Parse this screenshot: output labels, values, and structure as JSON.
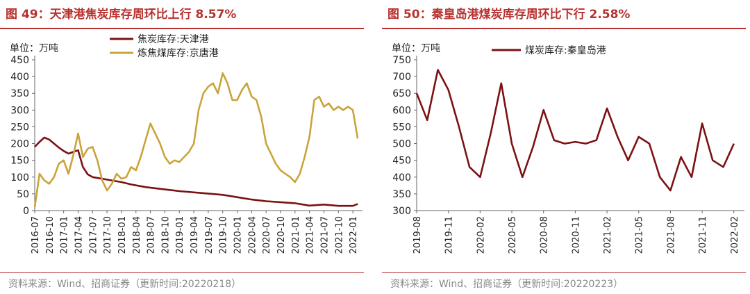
{
  "panels": {
    "left": {
      "title": "图 49：天津港焦炭库存周环比上行 8.57%",
      "source": "资料来源：Wind、招商证券（更新时间:20220218）"
    },
    "right": {
      "title": "图 50：秦皇岛港煤炭库存周环比下行 2.58%",
      "source": "资料来源：Wind、招商证券（更新时间:20220223）"
    }
  },
  "chart_data": [
    {
      "type": "line",
      "unit_label": "单位：万吨",
      "ylim": [
        0,
        450
      ],
      "yticks": [
        0,
        50,
        100,
        150,
        200,
        250,
        300,
        350,
        400,
        450
      ],
      "xlim": [
        "2016-07",
        "2022-03"
      ],
      "xticks": [
        "2016-07",
        "2016-10",
        "2017-01",
        "2017-04",
        "2017-07",
        "2017-10",
        "2018-01",
        "2018-04",
        "2018-07",
        "2018-10",
        "2019-01",
        "2019-04",
        "2019-07",
        "2019-10",
        "2020-01",
        "2020-04",
        "2020-07",
        "2020-10",
        "2021-01",
        "2021-04",
        "2021-07",
        "2021-10",
        "2022-01"
      ],
      "legend": "top",
      "colors": [
        "#7b1113",
        "#c9a43a"
      ],
      "series": [
        {
          "name": "焦炭库存:天津港",
          "color": "#7b1113",
          "points": [
            [
              "2016-07",
              190
            ],
            [
              "2016-08",
              205
            ],
            [
              "2016-09",
              218
            ],
            [
              "2016-10",
              212
            ],
            [
              "2016-11",
              200
            ],
            [
              "2016-12",
              188
            ],
            [
              "2017-01",
              178
            ],
            [
              "2017-02",
              170
            ],
            [
              "2017-03",
              175
            ],
            [
              "2017-04",
              180
            ],
            [
              "2017-05",
              130
            ],
            [
              "2017-06",
              108
            ],
            [
              "2017-07",
              100
            ],
            [
              "2017-09",
              95
            ],
            [
              "2017-11",
              90
            ],
            [
              "2018-01",
              85
            ],
            [
              "2018-03",
              78
            ],
            [
              "2018-06",
              70
            ],
            [
              "2018-09",
              65
            ],
            [
              "2019-01",
              58
            ],
            [
              "2019-06",
              52
            ],
            [
              "2019-10",
              47
            ],
            [
              "2020-01",
              40
            ],
            [
              "2020-04",
              33
            ],
            [
              "2020-07",
              28
            ],
            [
              "2020-10",
              25
            ],
            [
              "2021-01",
              22
            ],
            [
              "2021-04",
              15
            ],
            [
              "2021-07",
              18
            ],
            [
              "2021-10",
              14
            ],
            [
              "2022-01",
              14
            ],
            [
              "2022-02",
              20
            ]
          ]
        },
        {
          "name": "炼焦煤库存:京唐港",
          "color": "#c9a43a",
          "points": [
            [
              "2016-07",
              10
            ],
            [
              "2016-08",
              110
            ],
            [
              "2016-09",
              90
            ],
            [
              "2016-10",
              80
            ],
            [
              "2016-11",
              100
            ],
            [
              "2016-12",
              140
            ],
            [
              "2017-01",
              150
            ],
            [
              "2017-02",
              110
            ],
            [
              "2017-03",
              165
            ],
            [
              "2017-04",
              230
            ],
            [
              "2017-05",
              160
            ],
            [
              "2017-06",
              185
            ],
            [
              "2017-07",
              190
            ],
            [
              "2017-08",
              150
            ],
            [
              "2017-09",
              90
            ],
            [
              "2017-10",
              60
            ],
            [
              "2017-11",
              80
            ],
            [
              "2017-12",
              110
            ],
            [
              "2018-01",
              95
            ],
            [
              "2018-02",
              100
            ],
            [
              "2018-03",
              130
            ],
            [
              "2018-04",
              120
            ],
            [
              "2018-05",
              160
            ],
            [
              "2018-06",
              210
            ],
            [
              "2018-07",
              260
            ],
            [
              "2018-08",
              230
            ],
            [
              "2018-09",
              200
            ],
            [
              "2018-10",
              160
            ],
            [
              "2018-11",
              140
            ],
            [
              "2018-12",
              150
            ],
            [
              "2019-01",
              145
            ],
            [
              "2019-02",
              160
            ],
            [
              "2019-03",
              175
            ],
            [
              "2019-04",
              200
            ],
            [
              "2019-05",
              300
            ],
            [
              "2019-06",
              350
            ],
            [
              "2019-07",
              370
            ],
            [
              "2019-08",
              380
            ],
            [
              "2019-09",
              350
            ],
            [
              "2019-10",
              410
            ],
            [
              "2019-11",
              380
            ],
            [
              "2019-12",
              330
            ],
            [
              "2020-01",
              330
            ],
            [
              "2020-02",
              360
            ],
            [
              "2020-03",
              380
            ],
            [
              "2020-04",
              340
            ],
            [
              "2020-05",
              330
            ],
            [
              "2020-06",
              280
            ],
            [
              "2020-07",
              200
            ],
            [
              "2020-08",
              170
            ],
            [
              "2020-09",
              140
            ],
            [
              "2020-10",
              120
            ],
            [
              "2020-11",
              110
            ],
            [
              "2020-12",
              100
            ],
            [
              "2021-01",
              85
            ],
            [
              "2021-02",
              110
            ],
            [
              "2021-03",
              160
            ],
            [
              "2021-04",
              220
            ],
            [
              "2021-05",
              330
            ],
            [
              "2021-06",
              340
            ],
            [
              "2021-07",
              310
            ],
            [
              "2021-08",
              320
            ],
            [
              "2021-09",
              300
            ],
            [
              "2021-10",
              310
            ],
            [
              "2021-11",
              300
            ],
            [
              "2021-12",
              310
            ],
            [
              "2022-01",
              300
            ],
            [
              "2022-02",
              215
            ]
          ]
        }
      ]
    },
    {
      "type": "line",
      "unit_label": "单位：万吨",
      "ylim": [
        300,
        750
      ],
      "yticks": [
        300,
        350,
        400,
        450,
        500,
        550,
        600,
        650,
        700,
        750
      ],
      "xlim": [
        "2019-08",
        "2022-03"
      ],
      "xticks": [
        "2019-08",
        "2019-11",
        "2020-02",
        "2020-05",
        "2020-08",
        "2020-11",
        "2021-02",
        "2021-05",
        "2021-08",
        "2021-11",
        "2022-02"
      ],
      "legend": "top",
      "colors": [
        "#7b1113"
      ],
      "series": [
        {
          "name": "煤炭库存:秦皇岛港",
          "color": "#7b1113",
          "points": [
            [
              "2019-08",
              650
            ],
            [
              "2019-09",
              570
            ],
            [
              "2019-10",
              720
            ],
            [
              "2019-11",
              660
            ],
            [
              "2019-12",
              550
            ],
            [
              "2020-01",
              430
            ],
            [
              "2020-02",
              400
            ],
            [
              "2020-03",
              530
            ],
            [
              "2020-04",
              680
            ],
            [
              "2020-05",
              500
            ],
            [
              "2020-06",
              400
            ],
            [
              "2020-07",
              490
            ],
            [
              "2020-08",
              600
            ],
            [
              "2020-09",
              510
            ],
            [
              "2020-10",
              500
            ],
            [
              "2020-11",
              505
            ],
            [
              "2020-12",
              500
            ],
            [
              "2021-01",
              510
            ],
            [
              "2021-02",
              605
            ],
            [
              "2021-03",
              520
            ],
            [
              "2021-04",
              450
            ],
            [
              "2021-05",
              520
            ],
            [
              "2021-06",
              500
            ],
            [
              "2021-07",
              400
            ],
            [
              "2021-08",
              360
            ],
            [
              "2021-09",
              460
            ],
            [
              "2021-10",
              400
            ],
            [
              "2021-11",
              560
            ],
            [
              "2021-12",
              450
            ],
            [
              "2022-01",
              430
            ],
            [
              "2022-02",
              500
            ]
          ]
        }
      ]
    }
  ]
}
